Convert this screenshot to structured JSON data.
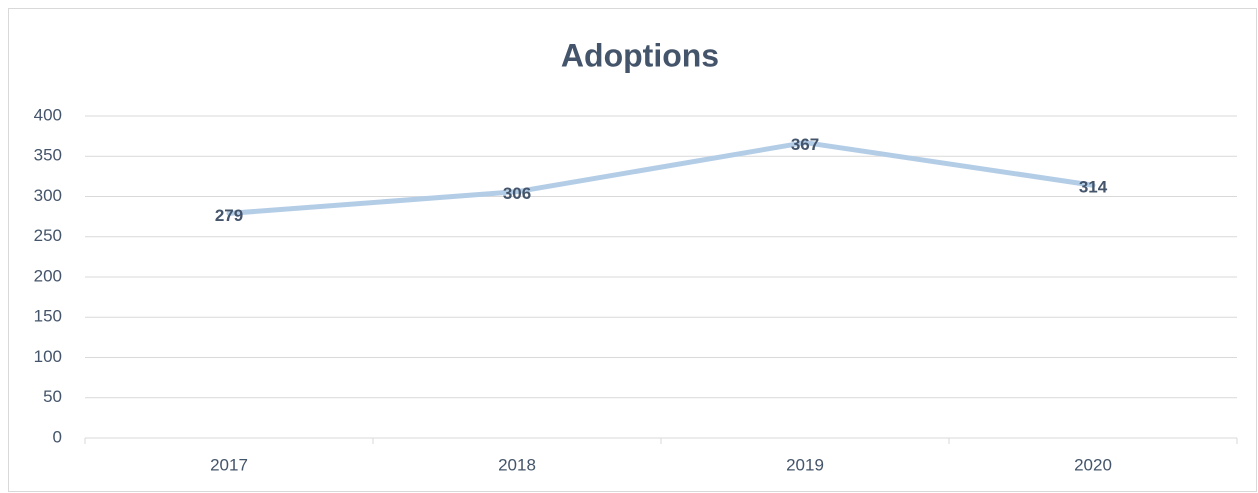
{
  "chart_data": {
    "type": "line",
    "title": "Adoptions",
    "categories": [
      "2017",
      "2018",
      "2019",
      "2020"
    ],
    "values": [
      279,
      306,
      367,
      314
    ],
    "color": "#b4cde6",
    "ylim": [
      0,
      400
    ],
    "yticks": [
      0,
      50,
      100,
      150,
      200,
      250,
      300,
      350,
      400
    ],
    "grid": true
  }
}
